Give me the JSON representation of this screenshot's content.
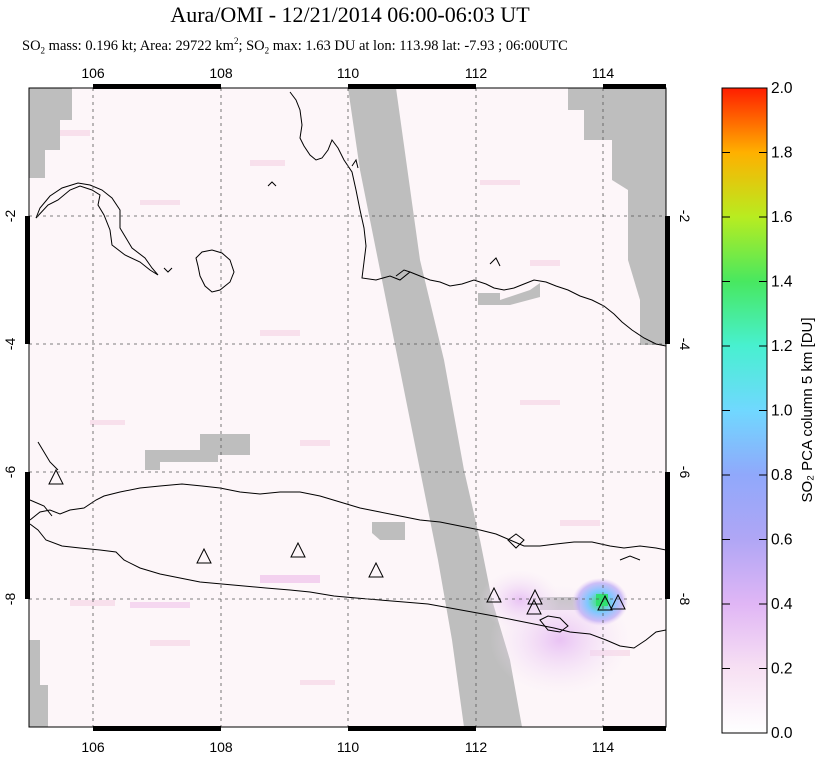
{
  "title": "Aura/OMI - 12/21/2014 06:00-06:03 UT",
  "subtitle": {
    "part1": "SO",
    "sub1": "2",
    "part2": " mass: 0.196 kt; Area: 29722 km",
    "sup1": "2",
    "part3": "; SO",
    "sub2": "2",
    "part4": " max: 1.63 DU at lon: 113.98 lat: -7.93 ; 06:00UTC"
  },
  "map": {
    "lon_range": [
      105,
      115
    ],
    "lat_range": [
      -10,
      0
    ],
    "lon_ticks": [
      "106",
      "108",
      "110",
      "112",
      "114"
    ],
    "lat_ticks": [
      "-2",
      "-4",
      "-6",
      "-8"
    ],
    "volcano_marker": "triangle-outline",
    "grid": "dashed",
    "missing_data_color": "#bebebe",
    "background_color": "#fdf5f8"
  },
  "colorbar": {
    "label": "SO₂ PCA column 5 km [DU]",
    "ticks": [
      "0.0",
      "0.2",
      "0.4",
      "0.6",
      "0.8",
      "1.0",
      "1.2",
      "1.4",
      "1.6",
      "1.8",
      "2.0"
    ],
    "colors": [
      "#ffffff",
      "#f5d9f0",
      "#d8a8f5",
      "#9c9cf5",
      "#6cc8ff",
      "#4cf0e8",
      "#40e898",
      "#58e030",
      "#c8e818",
      "#ffb800",
      "#ff6a00",
      "#ff2000"
    ]
  }
}
